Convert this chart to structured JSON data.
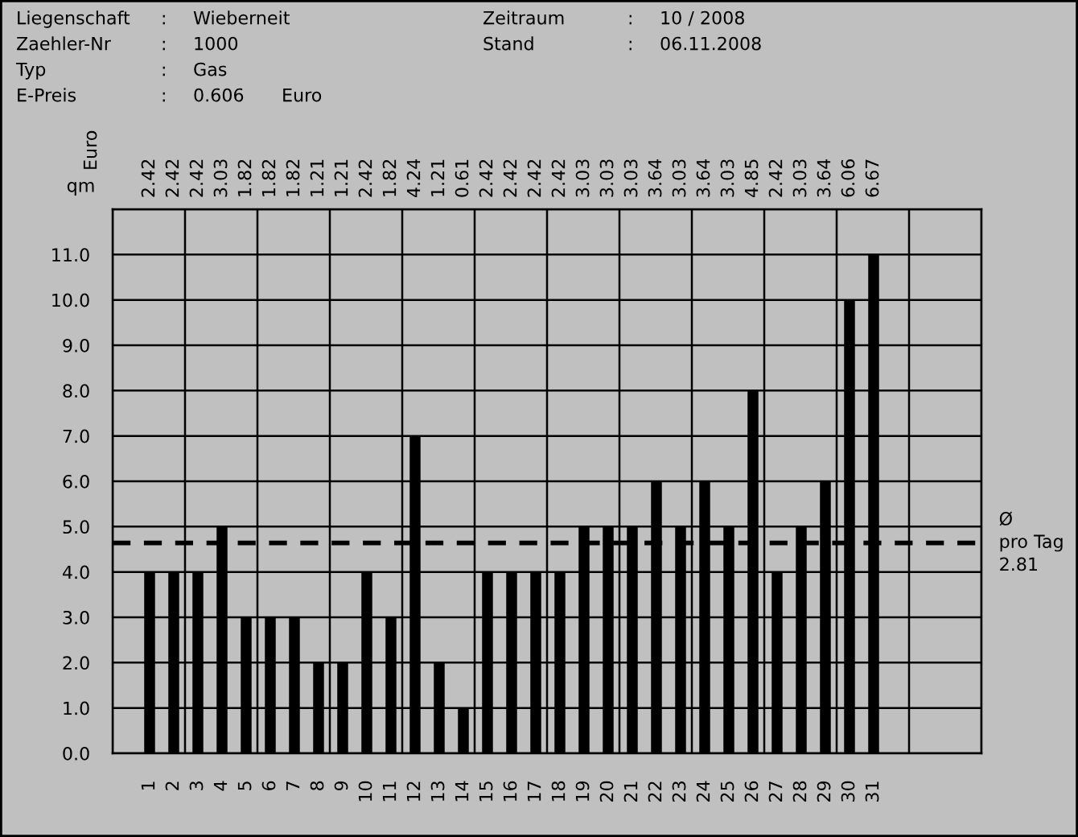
{
  "chart_data": {
    "type": "bar",
    "categories": [
      "1",
      "2",
      "3",
      "4",
      "5",
      "6",
      "7",
      "8",
      "9",
      "10",
      "11",
      "12",
      "13",
      "14",
      "15",
      "16",
      "17",
      "18",
      "19",
      "20",
      "21",
      "22",
      "23",
      "24",
      "25",
      "26",
      "27",
      "28",
      "29",
      "30",
      "31"
    ],
    "values": [
      4,
      4,
      4,
      5,
      3,
      3,
      3,
      2,
      2,
      4,
      3,
      7,
      2,
      1,
      4,
      4,
      4,
      4,
      5,
      5,
      5,
      6,
      5,
      6,
      5,
      8,
      4,
      5,
      6,
      10,
      11
    ],
    "color": "#000000",
    "ylabel": "qm",
    "x2label": "Euro",
    "ylim": [
      0,
      12
    ],
    "yticks": [
      {
        "value": 0,
        "label": "0.0"
      },
      {
        "value": 1,
        "label": "1.0"
      },
      {
        "value": 2,
        "label": "2.0"
      },
      {
        "value": 3,
        "label": "3.0"
      },
      {
        "value": 4,
        "label": "4.0"
      },
      {
        "value": 5,
        "label": "5.0"
      },
      {
        "value": 6,
        "label": "6.0"
      },
      {
        "value": 7,
        "label": "7.0"
      },
      {
        "value": 8,
        "label": "8.0"
      },
      {
        "value": 9,
        "label": "9.0"
      },
      {
        "value": 10,
        "label": "10.0"
      },
      {
        "value": 11,
        "label": "11.0"
      },
      {
        "value": 12,
        "label": null
      }
    ],
    "grid": true,
    "ref_lines": [
      {
        "axis": "y",
        "value": 4.64,
        "label": "Ø\npro Tag\n2.81",
        "color": "#000000",
        "line_style": "dashed"
      }
    ],
    "annotations": [
      "Liegenschaft",
      ":",
      "Wieberneit",
      "Zaehler-Nr",
      ":",
      "1000",
      "Typ",
      ":",
      "Gas",
      "E-Preis",
      ":",
      "0.606",
      "Euro",
      "Zeitraum",
      ":",
      "10 / 2008",
      "Stand",
      ":",
      "06.11.2008",
      "2.42",
      "2.42",
      "2.42",
      "3.03",
      "1.82",
      "1.82",
      "1.82",
      "1.21",
      "1.21",
      "2.42",
      "1.82",
      "4.24",
      "1.21",
      "0.61",
      "2.42",
      "2.42",
      "2.42",
      "2.42",
      "3.03",
      "3.03",
      "3.03",
      "3.64",
      "3.03",
      "3.64",
      "3.03",
      "4.85",
      "2.42",
      "3.03",
      "3.64",
      "6.06",
      "6.67"
    ]
  }
}
